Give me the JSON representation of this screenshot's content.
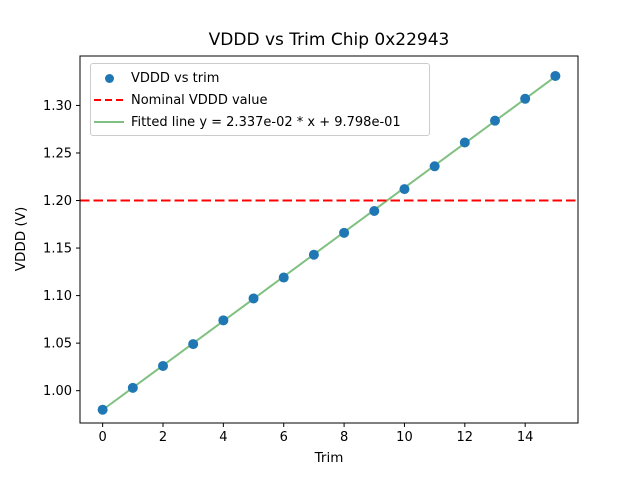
{
  "chart_data": {
    "type": "scatter",
    "title": "VDDD vs Trim Chip 0x22943",
    "xlabel": "Trim",
    "ylabel": "VDDD (V)",
    "x": [
      0,
      1,
      2,
      3,
      4,
      5,
      6,
      7,
      8,
      9,
      10,
      11,
      12,
      13,
      14,
      15
    ],
    "series": [
      {
        "name": "VDDD vs trim",
        "type": "scatter",
        "marker": "circle",
        "color": "#1f77b4",
        "values": [
          0.98,
          1.003,
          1.026,
          1.049,
          1.074,
          1.097,
          1.119,
          1.143,
          1.166,
          1.189,
          1.212,
          1.236,
          1.261,
          1.284,
          1.307,
          1.331
        ]
      },
      {
        "name": "Nominal VDDD value",
        "type": "hline",
        "linestyle": "dashed",
        "color": "#ff0000",
        "value": 1.2
      },
      {
        "name": "Fitted line y = 2.337e-02 * x + 9.798e-01",
        "type": "line",
        "linestyle": "solid",
        "color": "#80c080",
        "slope": 0.02337,
        "intercept": 0.9798,
        "x_start": 0,
        "x_end": 15
      }
    ],
    "xlim": [
      -0.75,
      15.75
    ],
    "ylim": [
      0.966,
      1.352
    ],
    "xticks": [
      "0",
      "2",
      "4",
      "6",
      "8",
      "10",
      "12",
      "14"
    ],
    "yticks": [
      "1.00",
      "1.05",
      "1.10",
      "1.15",
      "1.20",
      "1.25",
      "1.30"
    ],
    "grid": false,
    "legend_position": "upper left",
    "axis_color": "#000000",
    "text_color": "#000000",
    "background_color": "#ffffff"
  }
}
